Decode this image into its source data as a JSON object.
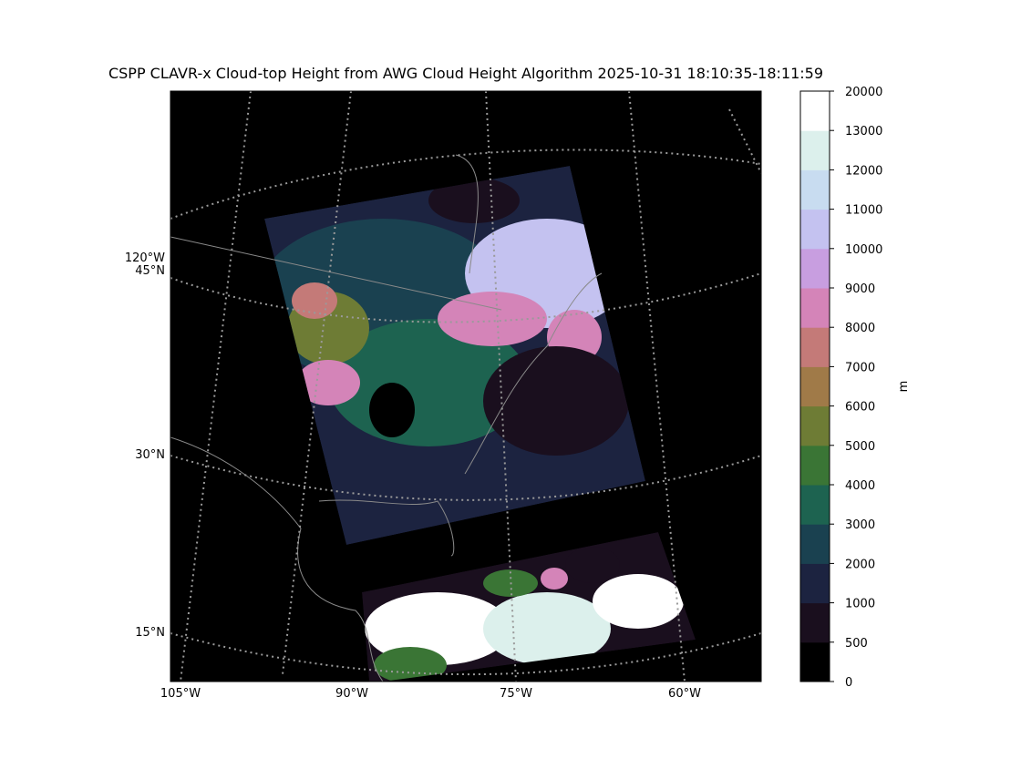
{
  "title": "CSPP CLAVR-x Cloud-top Height from AWG Cloud Height Algorithm 2025-10-31 18:10:35-18:11:59",
  "map": {
    "lon_labels": [
      "105°W",
      "90°W",
      "75°W",
      "60°W"
    ],
    "lat_labels": [
      "120°W",
      "45°N",
      "30°N",
      "15°N"
    ]
  },
  "colorbar": {
    "label": "m",
    "ticks": [
      0,
      500,
      1000,
      2000,
      3000,
      4000,
      5000,
      6000,
      7000,
      8000,
      9000,
      10000,
      11000,
      12000,
      13000,
      20000
    ],
    "colors": [
      "#000000",
      "#1a0f1e",
      "#1c2340",
      "#1a4150",
      "#1d6350",
      "#3a7535",
      "#6e7c35",
      "#a07a48",
      "#c47a78",
      "#d484b8",
      "#c89ee0",
      "#c4c2f0",
      "#c8dcf0",
      "#dcf0ec",
      "#ffffff"
    ]
  }
}
